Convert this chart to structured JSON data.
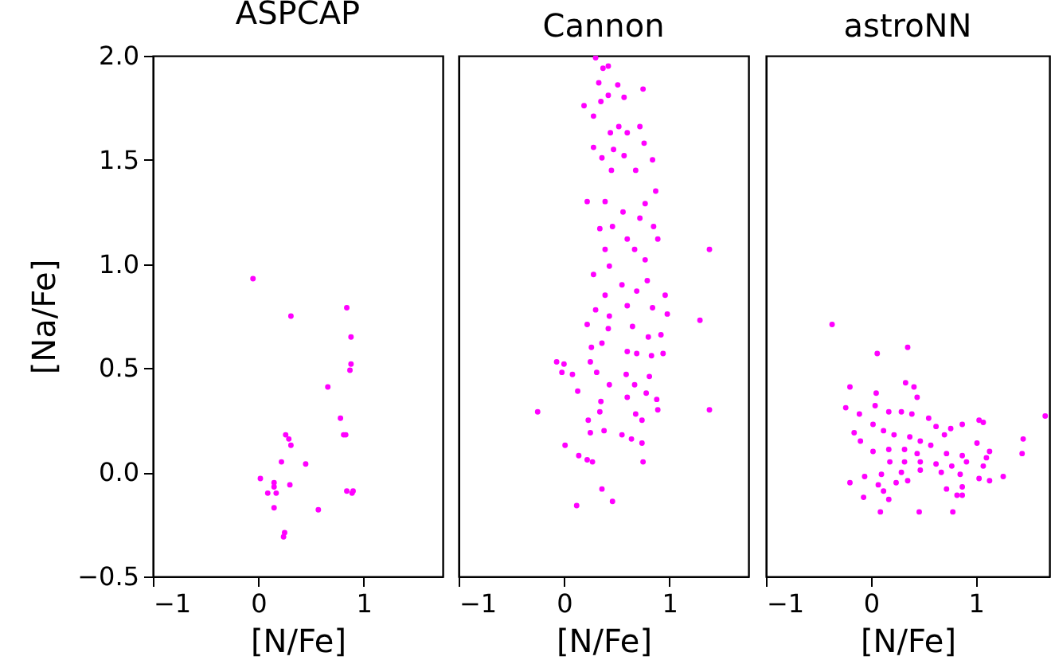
{
  "chart_data": [
    {
      "type": "scatter",
      "title": "ASPCAP",
      "xlabel": "[N/Fe]",
      "ylabel": "[Na/Fe]",
      "xlim": [
        -1,
        1.75
      ],
      "ylim": [
        -0.5,
        2.0
      ],
      "xticks": [
        -1,
        0,
        1
      ],
      "yticks": [
        -0.5,
        {
          "value": 0,
          "label": "0.0"
        },
        0.5,
        {
          "value": 1,
          "label": "1.0"
        },
        1.5,
        {
          "value": 2,
          "label": "2.0"
        }
      ],
      "grid": false,
      "marker": "circle",
      "x": [
        -0.05,
        0.31,
        0.84,
        0.88,
        0.88,
        0.87,
        0.66,
        0.78,
        0.81,
        0.83,
        0.26,
        0.29,
        0.31,
        0.22,
        0.45,
        0.02,
        0.15,
        0.15,
        0.3,
        0.09,
        0.17,
        0.84,
        0.89,
        0.9,
        0.15,
        0.57,
        0.25,
        0.24
      ],
      "series": [
        {
          "color": "#ff00ff",
          "values": [
            0.93,
            0.75,
            0.79,
            0.65,
            0.52,
            0.49,
            0.41,
            0.26,
            0.18,
            0.18,
            0.18,
            0.16,
            0.13,
            0.05,
            0.04,
            -0.03,
            -0.05,
            -0.07,
            -0.06,
            -0.1,
            -0.1,
            -0.09,
            -0.1,
            -0.09,
            -0.17,
            -0.18,
            -0.29,
            -0.31
          ]
        }
      ]
    },
    {
      "type": "scatter",
      "title": "Cannon",
      "xlabel": "[N/Fe]",
      "xlim": [
        -1,
        1.75
      ],
      "ylim": [
        -0.5,
        2.0
      ],
      "xticks": [
        -1,
        0,
        1
      ],
      "tick_labels": "x",
      "grid": false,
      "marker": "circle",
      "x": [
        0.3,
        0.37,
        0.42,
        0.33,
        0.51,
        0.75,
        0.19,
        0.42,
        0.57,
        0.35,
        0.28,
        0.52,
        0.72,
        0.44,
        0.6,
        0.76,
        0.28,
        0.47,
        0.84,
        0.36,
        0.57,
        0.68,
        0.45,
        0.87,
        0.22,
        0.39,
        0.56,
        0.77,
        0.72,
        0.34,
        0.46,
        0.85,
        0.39,
        0.6,
        0.89,
        1.38,
        0.67,
        0.77,
        0.28,
        0.43,
        0.55,
        0.79,
        0.39,
        0.96,
        0.69,
        0.3,
        0.43,
        0.6,
        0.84,
        0.98,
        1.29,
        0.22,
        0.65,
        0.42,
        0.8,
        0.92,
        0.36,
        0.26,
        0.6,
        0.69,
        0.94,
        0.83,
        -0.07,
        0.0,
        0.25,
        -0.02,
        0.08,
        0.31,
        0.59,
        0.81,
        0.67,
        0.43,
        0.13,
        0.78,
        0.6,
        0.35,
        0.88,
        -0.25,
        1.38,
        0.34,
        0.68,
        0.89,
        0.74,
        0.23,
        0.25,
        0.38,
        0.55,
        0.64,
        0.74,
        0.01,
        0.14,
        0.22,
        0.27,
        0.75,
        0.36,
        0.46,
        0.12
      ],
      "series": [
        {
          "color": "#ff00ff",
          "values": [
            1.99,
            1.94,
            1.95,
            1.87,
            1.86,
            1.84,
            1.76,
            1.81,
            1.8,
            1.78,
            1.71,
            1.66,
            1.66,
            1.63,
            1.63,
            1.58,
            1.56,
            1.55,
            1.5,
            1.51,
            1.52,
            1.45,
            1.45,
            1.35,
            1.3,
            1.3,
            1.25,
            1.29,
            1.22,
            1.17,
            1.18,
            1.18,
            1.07,
            1.12,
            1.12,
            1.07,
            1.07,
            1.02,
            0.95,
            0.99,
            0.9,
            0.92,
            0.85,
            0.85,
            0.87,
            0.78,
            0.75,
            0.8,
            0.79,
            0.76,
            0.73,
            0.71,
            0.7,
            0.69,
            0.65,
            0.66,
            0.62,
            0.6,
            0.58,
            0.57,
            0.57,
            0.56,
            0.53,
            0.52,
            0.53,
            0.48,
            0.47,
            0.48,
            0.47,
            0.46,
            0.42,
            0.42,
            0.39,
            0.38,
            0.36,
            0.34,
            0.35,
            0.29,
            0.3,
            0.29,
            0.28,
            0.3,
            0.25,
            0.25,
            0.19,
            0.2,
            0.18,
            0.16,
            0.14,
            0.13,
            0.08,
            0.06,
            0.05,
            0.05,
            -0.08,
            -0.14,
            -0.16
          ]
        }
      ]
    },
    {
      "type": "scatter",
      "title": "astroNN",
      "xlabel": "[N/Fe]",
      "xlim": [
        -1,
        1.7
      ],
      "ylim": [
        -0.5,
        2.0
      ],
      "xticks": [
        -1,
        0,
        1
      ],
      "tick_labels": "x",
      "grid": false,
      "marker": "circle",
      "x": [
        -0.37,
        0.35,
        0.06,
        0.33,
        -0.2,
        0.41,
        0.44,
        0.05,
        1.66,
        -0.24,
        -0.11,
        0.04,
        0.17,
        0.29,
        0.02,
        0.12,
        0.39,
        0.55,
        1.03,
        1.07,
        0.87,
        -0.16,
        -0.1,
        0.22,
        0.37,
        0.47,
        0.62,
        0.76,
        0.7,
        1.45,
        1.01,
        0.02,
        0.17,
        0.32,
        0.44,
        0.57,
        0.72,
        0.87,
        1.13,
        1.44,
        0.18,
        0.32,
        0.47,
        0.62,
        0.77,
        0.91,
        1.1,
        1.07,
        0.29,
        0.47,
        0.67,
        0.85,
        1.26,
        -0.06,
        0.1,
        0.24,
        -0.2,
        0.07,
        0.35,
        1.03,
        1.13,
        0.87,
        0.72,
        0.12,
        0.17,
        -0.07,
        0.82,
        0.87,
        0.09,
        0.46,
        0.78
      ],
      "series": [
        {
          "color": "#ff00ff",
          "values": [
            0.71,
            0.6,
            0.57,
            0.43,
            0.41,
            0.41,
            0.36,
            0.38,
            0.27,
            0.31,
            0.28,
            0.32,
            0.29,
            0.29,
            0.23,
            0.2,
            0.28,
            0.26,
            0.25,
            0.24,
            0.23,
            0.19,
            0.15,
            0.18,
            0.17,
            0.15,
            0.22,
            0.21,
            0.18,
            0.16,
            0.14,
            0.1,
            0.11,
            0.11,
            0.09,
            0.13,
            0.09,
            0.08,
            0.1,
            0.09,
            0.05,
            0.05,
            0.05,
            0.04,
            0.03,
            0.05,
            0.07,
            0.03,
            0.0,
            0.01,
            0.0,
            -0.01,
            -0.02,
            -0.02,
            -0.01,
            -0.05,
            -0.05,
            -0.06,
            -0.04,
            -0.03,
            -0.04,
            -0.07,
            -0.08,
            -0.09,
            -0.13,
            -0.12,
            -0.11,
            -0.11,
            -0.19,
            -0.19,
            -0.19
          ]
        }
      ]
    }
  ]
}
